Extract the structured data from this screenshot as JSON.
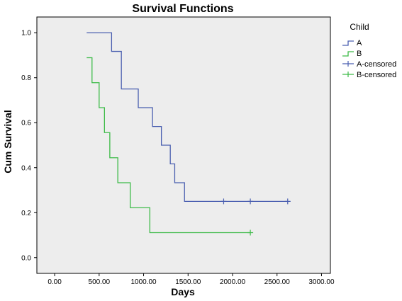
{
  "chart_data": {
    "type": "line",
    "title": "Survival Functions",
    "xlabel": "Days",
    "ylabel": "Cum Survival",
    "xlim": [
      -200,
      3100
    ],
    "ylim": [
      -0.07,
      1.07
    ],
    "x_ticks": [
      0,
      500,
      1000,
      1500,
      2000,
      2500,
      3000
    ],
    "x_tick_labels": [
      "0.00",
      "500.00",
      "1000.00",
      "1500.00",
      "2000.00",
      "2500.00",
      "3000.00"
    ],
    "y_ticks": [
      0.0,
      0.2,
      0.4,
      0.6,
      0.8,
      1.0
    ],
    "y_tick_labels": [
      "0.0",
      "0.2",
      "0.4",
      "0.6",
      "0.8",
      "1.0"
    ],
    "grid": false,
    "plot_background": "#ededed",
    "legend_title": "Child",
    "legend_position": "right",
    "legend": [
      {
        "label": "A",
        "kind": "step",
        "color": "#4a5fb0"
      },
      {
        "label": "B",
        "kind": "step",
        "color": "#3dbb48"
      },
      {
        "label": "A-censored",
        "kind": "censor",
        "color": "#4a5fb0"
      },
      {
        "label": "B-censored",
        "kind": "censor",
        "color": "#3dbb48"
      }
    ],
    "series": [
      {
        "name": "A",
        "color": "#4a5fb0",
        "start_x": 360,
        "steps": [
          {
            "x": 640,
            "y": 0.917
          },
          {
            "x": 750,
            "y": 0.75
          },
          {
            "x": 940,
            "y": 0.667
          },
          {
            "x": 1100,
            "y": 0.583
          },
          {
            "x": 1200,
            "y": 0.5
          },
          {
            "x": 1300,
            "y": 0.417
          },
          {
            "x": 1350,
            "y": 0.333
          },
          {
            "x": 1460,
            "y": 0.25
          }
        ],
        "start_y": 1.0,
        "end_x": 2620,
        "censored": [
          {
            "x": 1900,
            "y": 0.25
          },
          {
            "x": 2200,
            "y": 0.25
          },
          {
            "x": 2620,
            "y": 0.25
          }
        ]
      },
      {
        "name": "B",
        "color": "#3dbb48",
        "start_x": 360,
        "start_y": 0.889,
        "steps": [
          {
            "x": 420,
            "y": 0.778
          },
          {
            "x": 500,
            "y": 0.667
          },
          {
            "x": 560,
            "y": 0.556
          },
          {
            "x": 620,
            "y": 0.444
          },
          {
            "x": 710,
            "y": 0.333
          },
          {
            "x": 850,
            "y": 0.222
          },
          {
            "x": 1070,
            "y": 0.111
          }
        ],
        "end_x": 2200,
        "censored": [
          {
            "x": 2200,
            "y": 0.111
          }
        ]
      }
    ]
  }
}
